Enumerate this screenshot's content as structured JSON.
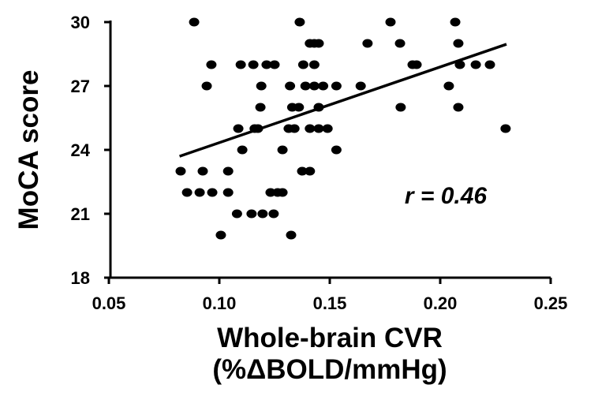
{
  "chart_data": {
    "type": "scatter",
    "xlabel_line1": "Whole-brain CVR",
    "xlabel_line2": "(%ΔBOLD/mmHg)",
    "ylabel": "MoCA score",
    "annotation": "r = 0.46",
    "xlim": [
      0.05,
      0.25
    ],
    "ylim": [
      18,
      30
    ],
    "xticks": [
      "0.05",
      "0.10",
      "0.15",
      "0.20",
      "0.25"
    ],
    "yticks": [
      "18",
      "21",
      "24",
      "27",
      "30"
    ],
    "grid": false,
    "marker_color": "#000000",
    "points": [
      [
        0.0886,
        30
      ],
      [
        0.1364,
        30
      ],
      [
        0.1775,
        30
      ],
      [
        0.2068,
        30
      ],
      [
        0.141,
        29
      ],
      [
        0.143,
        29
      ],
      [
        0.145,
        29
      ],
      [
        0.1671,
        29
      ],
      [
        0.1818,
        29
      ],
      [
        0.2082,
        29
      ],
      [
        0.0964,
        28
      ],
      [
        0.1097,
        28
      ],
      [
        0.1154,
        28
      ],
      [
        0.1214,
        28
      ],
      [
        0.125,
        28
      ],
      [
        0.138,
        28
      ],
      [
        0.143,
        28
      ],
      [
        0.1875,
        28
      ],
      [
        0.1893,
        28
      ],
      [
        0.2089,
        28
      ],
      [
        0.2161,
        28
      ],
      [
        0.2225,
        28
      ],
      [
        0.0943,
        27
      ],
      [
        0.119,
        27
      ],
      [
        0.132,
        27
      ],
      [
        0.139,
        27
      ],
      [
        0.143,
        27
      ],
      [
        0.147,
        27
      ],
      [
        0.153,
        27
      ],
      [
        0.164,
        27
      ],
      [
        0.2039,
        27
      ],
      [
        0.1186,
        26
      ],
      [
        0.133,
        26
      ],
      [
        0.136,
        26
      ],
      [
        0.145,
        26
      ],
      [
        0.1821,
        26
      ],
      [
        0.2082,
        26
      ],
      [
        0.1086,
        25
      ],
      [
        0.116,
        25
      ],
      [
        0.1175,
        25
      ],
      [
        0.1314,
        25
      ],
      [
        0.134,
        25
      ],
      [
        0.141,
        25
      ],
      [
        0.145,
        25
      ],
      [
        0.149,
        25
      ],
      [
        0.2296,
        25
      ],
      [
        0.1104,
        24
      ],
      [
        0.1286,
        24
      ],
      [
        0.153,
        24
      ],
      [
        0.0825,
        23
      ],
      [
        0.0925,
        23
      ],
      [
        0.104,
        23
      ],
      [
        0.1375,
        23
      ],
      [
        0.141,
        23
      ],
      [
        0.0854,
        22
      ],
      [
        0.0911,
        22
      ],
      [
        0.0968,
        22
      ],
      [
        0.104,
        22
      ],
      [
        0.1232,
        22
      ],
      [
        0.1264,
        22
      ],
      [
        0.1286,
        22
      ],
      [
        0.108,
        21
      ],
      [
        0.1146,
        21
      ],
      [
        0.1196,
        21
      ],
      [
        0.1246,
        21
      ],
      [
        0.1007,
        20
      ],
      [
        0.1325,
        20
      ]
    ],
    "fit_line": {
      "x": [
        0.082,
        0.23
      ],
      "y": [
        23.7,
        28.96
      ]
    }
  }
}
